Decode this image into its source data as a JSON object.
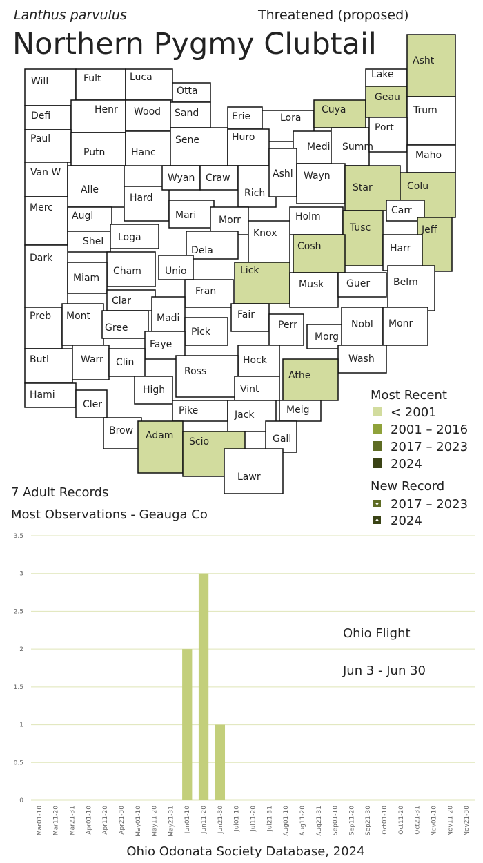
{
  "header": {
    "species": "Lanthus parvulus",
    "status": "Threatened (proposed)",
    "title": "Northern Pygmy Clubtail"
  },
  "map": {
    "counties": [
      {
        "label": "Will",
        "color": "#ffffff"
      },
      {
        "label": "Fult",
        "color": "#ffffff"
      },
      {
        "label": "Luca",
        "color": "#ffffff"
      },
      {
        "label": "Otta",
        "color": "#ffffff"
      },
      {
        "label": "Defi",
        "color": "#ffffff"
      },
      {
        "label": "Henr",
        "color": "#ffffff"
      },
      {
        "label": "Wood",
        "color": "#ffffff"
      },
      {
        "label": "Sand",
        "color": "#ffffff"
      },
      {
        "label": "Erie",
        "color": "#ffffff"
      },
      {
        "label": "Lora",
        "color": "#ffffff"
      },
      {
        "label": "Cuya",
        "color": "#d2dc9e"
      },
      {
        "label": "Lake",
        "color": "#ffffff"
      },
      {
        "label": "Geau",
        "color": "#d2dc9e"
      },
      {
        "label": "Asht",
        "color": "#d2dc9e"
      },
      {
        "label": "Trum",
        "color": "#ffffff"
      },
      {
        "label": "Paul",
        "color": "#ffffff"
      },
      {
        "label": "Putn",
        "color": "#ffffff"
      },
      {
        "label": "Hanc",
        "color": "#ffffff"
      },
      {
        "label": "Sene",
        "color": "#ffffff"
      },
      {
        "label": "Huro",
        "color": "#ffffff"
      },
      {
        "label": "Medi",
        "color": "#ffffff"
      },
      {
        "label": "Summ",
        "color": "#ffffff"
      },
      {
        "label": "Port",
        "color": "#ffffff"
      },
      {
        "label": "Maho",
        "color": "#ffffff"
      },
      {
        "label": "Van W",
        "color": "#ffffff"
      },
      {
        "label": "Alle",
        "color": "#ffffff"
      },
      {
        "label": "Hard",
        "color": "#ffffff"
      },
      {
        "label": "Wyan",
        "color": "#ffffff"
      },
      {
        "label": "Craw",
        "color": "#ffffff"
      },
      {
        "label": "Rich",
        "color": "#ffffff"
      },
      {
        "label": "Ashl",
        "color": "#ffffff"
      },
      {
        "label": "Wayn",
        "color": "#ffffff"
      },
      {
        "label": "Star",
        "color": "#d2dc9e"
      },
      {
        "label": "Colu",
        "color": "#d2dc9e"
      },
      {
        "label": "Merc",
        "color": "#ffffff"
      },
      {
        "label": "Augl",
        "color": "#ffffff"
      },
      {
        "label": "Mari",
        "color": "#ffffff"
      },
      {
        "label": "Morr",
        "color": "#ffffff"
      },
      {
        "label": "Holm",
        "color": "#ffffff"
      },
      {
        "label": "Carr",
        "color": "#ffffff"
      },
      {
        "label": "Knox",
        "color": "#ffffff"
      },
      {
        "label": "Tusc",
        "color": "#d2dc9e"
      },
      {
        "label": "Jeff",
        "color": "#d2dc9e"
      },
      {
        "label": "Shel",
        "color": "#ffffff"
      },
      {
        "label": "Loga",
        "color": "#ffffff"
      },
      {
        "label": "Harr",
        "color": "#ffffff"
      },
      {
        "label": "Dark",
        "color": "#ffffff"
      },
      {
        "label": "Dela",
        "color": "#ffffff"
      },
      {
        "label": "Cosh",
        "color": "#d2dc9e"
      },
      {
        "label": "Cham",
        "color": "#ffffff"
      },
      {
        "label": "Unio",
        "color": "#ffffff"
      },
      {
        "label": "Lick",
        "color": "#d2dc9e"
      },
      {
        "label": "Miam",
        "color": "#ffffff"
      },
      {
        "label": "Musk",
        "color": "#ffffff"
      },
      {
        "label": "Guer",
        "color": "#ffffff"
      },
      {
        "label": "Belm",
        "color": "#ffffff"
      },
      {
        "label": "Clar",
        "color": "#ffffff"
      },
      {
        "label": "Fran",
        "color": "#ffffff"
      },
      {
        "label": "Madi",
        "color": "#ffffff"
      },
      {
        "label": "Fair",
        "color": "#ffffff"
      },
      {
        "label": "Preb",
        "color": "#ffffff"
      },
      {
        "label": "Mont",
        "color": "#ffffff"
      },
      {
        "label": "Gree",
        "color": "#ffffff"
      },
      {
        "label": "Perr",
        "color": "#ffffff"
      },
      {
        "label": "Nobl",
        "color": "#ffffff"
      },
      {
        "label": "Monr",
        "color": "#ffffff"
      },
      {
        "label": "Pick",
        "color": "#ffffff"
      },
      {
        "label": "Morg",
        "color": "#ffffff"
      },
      {
        "label": "Faye",
        "color": "#ffffff"
      },
      {
        "label": "Butl",
        "color": "#ffffff"
      },
      {
        "label": "Warr",
        "color": "#ffffff"
      },
      {
        "label": "Clin",
        "color": "#ffffff"
      },
      {
        "label": "Hock",
        "color": "#ffffff"
      },
      {
        "label": "Wash",
        "color": "#ffffff"
      },
      {
        "label": "Ross",
        "color": "#ffffff"
      },
      {
        "label": "Athe",
        "color": "#d2dc9e"
      },
      {
        "label": "High",
        "color": "#ffffff"
      },
      {
        "label": "Vint",
        "color": "#ffffff"
      },
      {
        "label": "Hami",
        "color": "#ffffff"
      },
      {
        "label": "Cler",
        "color": "#ffffff"
      },
      {
        "label": "Meig",
        "color": "#ffffff"
      },
      {
        "label": "Pike",
        "color": "#ffffff"
      },
      {
        "label": "Jack",
        "color": "#ffffff"
      },
      {
        "label": "Brow",
        "color": "#ffffff"
      },
      {
        "label": "Adam",
        "color": "#d2dc9e"
      },
      {
        "label": "Scio",
        "color": "#d2dc9e"
      },
      {
        "label": "Gall",
        "color": "#ffffff"
      },
      {
        "label": "Lawr",
        "color": "#ffffff"
      }
    ]
  },
  "legend": {
    "recent_title": "Most Recent",
    "recent": [
      {
        "label": "< 2001",
        "color": "#d2dc9e"
      },
      {
        "label": "2001 – 2016",
        "color": "#8fa23a"
      },
      {
        "label": "2017 – 2023",
        "color": "#5e6c24"
      },
      {
        "label": "2024",
        "color": "#3a4315"
      }
    ],
    "new_title": "New Record",
    "new": [
      {
        "label": "2017 – 2023",
        "color": "#5e6c24"
      },
      {
        "label": "2024",
        "color": "#3a4315"
      }
    ]
  },
  "notes": [
    "7 Adult Records",
    "Most Observations - Geauga Co"
  ],
  "chart_data": {
    "type": "bar",
    "color": "#c3cf7b",
    "categories": [
      "Mar01-10",
      "Mar11-20",
      "Mar21-31",
      "Apr01-10",
      "Apr11-20",
      "Apr21-30",
      "May01-10",
      "May11-20",
      "May21-31",
      "Jun01-10",
      "Jun11-20",
      "Jun21-30",
      "Jul01-10",
      "Jul11-20",
      "Jul21-31",
      "Aug01-10",
      "Aug11-20",
      "Aug21-31",
      "Sep01-10",
      "Sep11-20",
      "Sep21-30",
      "Oct01-10",
      "Oct11-20",
      "Oct21-31",
      "Nov01-10",
      "Nov11-20",
      "Nov21-30"
    ],
    "values": [
      0,
      0,
      0,
      0,
      0,
      0,
      0,
      0,
      0,
      2,
      3,
      1,
      0,
      0,
      0,
      0,
      0,
      0,
      0,
      0,
      0,
      0,
      0,
      0,
      0,
      0,
      0
    ],
    "ylim": [
      0,
      3.5
    ],
    "yticks": [
      0,
      0.5,
      1,
      1.5,
      2,
      2.5,
      3,
      3.5
    ],
    "grid": true,
    "annotations": [
      "Ohio Flight",
      "Jun 3 - Jun 30"
    ]
  },
  "footer": "Ohio Odonata Society Database, 2024"
}
